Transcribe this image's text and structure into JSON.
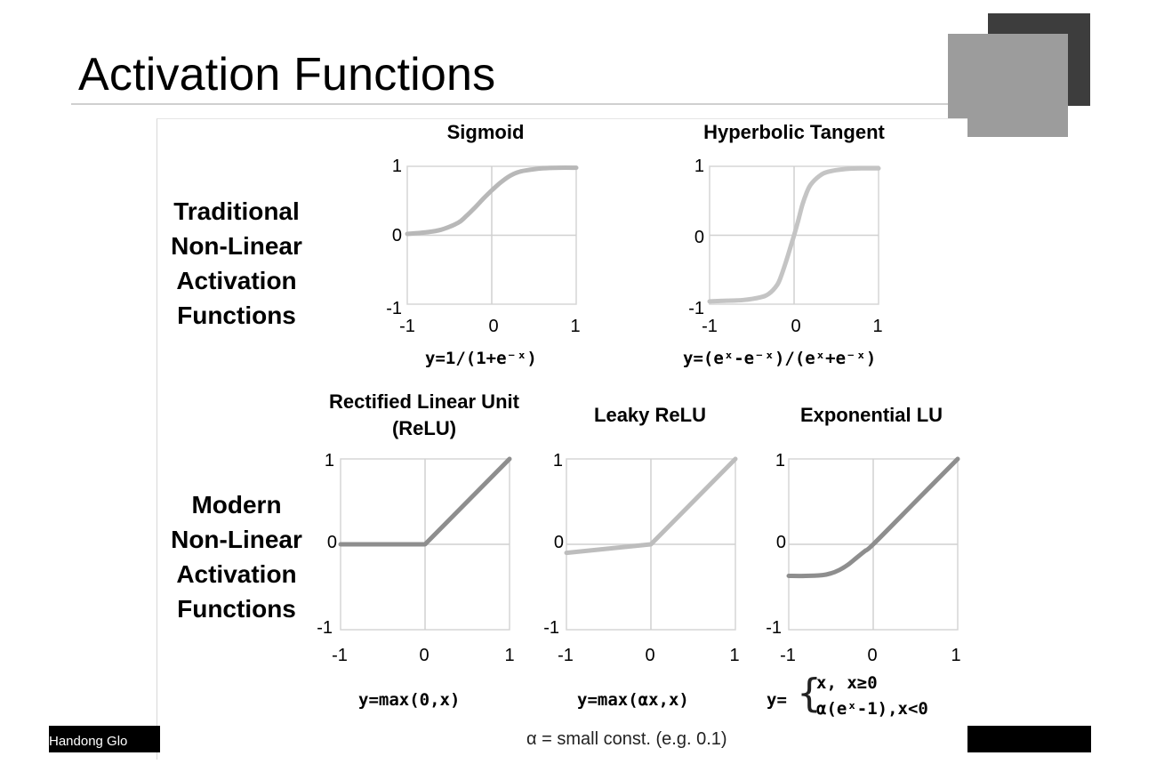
{
  "slide": {
    "title": "Activation Functions",
    "footer_text": "Handong Glo",
    "note": "α = small const. (e.g. 0.1)"
  },
  "row_labels": {
    "traditional": [
      "Traditional",
      "Non-Linear",
      "Activation",
      "Functions"
    ],
    "modern": [
      "Modern",
      "Non-Linear",
      "Activation",
      "Functions"
    ]
  },
  "colors": {
    "sigmoid_curve": "#b8b8b8",
    "tanh_curve": "#c4c4c4",
    "relu_curve": "#8e8e8e",
    "leaky_curve": "#bdbdbd",
    "elu_curve": "#8e8e8e",
    "axis_line": "#d0d0d0",
    "frame": "#d6d6d6"
  },
  "chart_data": [
    {
      "type": "line",
      "title": "Sigmoid",
      "formula": "y=1/(1+e⁻ˣ)",
      "xlim": [
        -1,
        1
      ],
      "ylim": [
        -1,
        1
      ],
      "x_ticks": [
        "-1",
        "0",
        "1"
      ],
      "y_ticks": [
        "1",
        "0",
        "-1"
      ],
      "grid": false,
      "x": [
        -1,
        -0.8,
        -0.6,
        -0.4,
        -0.3,
        -0.2,
        -0.1,
        0,
        0.1,
        0.2,
        0.3,
        0.4,
        0.6,
        0.8,
        1
      ],
      "y": [
        0.02,
        0.04,
        0.08,
        0.18,
        0.28,
        0.4,
        0.53,
        0.65,
        0.76,
        0.85,
        0.91,
        0.94,
        0.97,
        0.98,
        0.98
      ]
    },
    {
      "type": "line",
      "title": "Hyperbolic Tangent",
      "formula": "y=(eˣ-e⁻ˣ)/(eˣ+e⁻ˣ)",
      "xlim": [
        -1,
        1
      ],
      "ylim": [
        -1,
        1
      ],
      "x_ticks": [
        "-1",
        "0",
        "1"
      ],
      "y_ticks": [
        "1",
        "0",
        "-1"
      ],
      "grid": false,
      "x": [
        -1,
        -0.8,
        -0.6,
        -0.4,
        -0.3,
        -0.2,
        -0.15,
        -0.1,
        -0.05,
        0,
        0.05,
        0.1,
        0.15,
        0.2,
        0.3,
        0.4,
        0.6,
        0.8,
        1
      ],
      "y": [
        -0.96,
        -0.95,
        -0.94,
        -0.9,
        -0.85,
        -0.72,
        -0.58,
        -0.4,
        -0.2,
        0,
        0.22,
        0.45,
        0.62,
        0.74,
        0.86,
        0.92,
        0.96,
        0.97,
        0.97
      ]
    },
    {
      "type": "line",
      "title": "Rectified Linear Unit (ReLU)",
      "title_lines": [
        "Rectified Linear Unit",
        "(ReLU)"
      ],
      "formula": "y=max(0,x)",
      "xlim": [
        -1,
        1
      ],
      "ylim": [
        -1,
        1
      ],
      "x_ticks": [
        "-1",
        "0",
        "1"
      ],
      "y_ticks": [
        "1",
        "0",
        "-1"
      ],
      "grid": false,
      "x": [
        -1,
        0,
        1
      ],
      "y": [
        0,
        0,
        1
      ]
    },
    {
      "type": "line",
      "title": "Leaky ReLU",
      "formula": "y=max(αx,x)",
      "xlim": [
        -1,
        1
      ],
      "ylim": [
        -1,
        1
      ],
      "x_ticks": [
        "-1",
        "0",
        "1"
      ],
      "y_ticks": [
        "1",
        "0",
        "-1"
      ],
      "grid": false,
      "x": [
        -1,
        0,
        1
      ],
      "y": [
        -0.1,
        0,
        1
      ]
    },
    {
      "type": "line",
      "title": "Exponential LU",
      "formula_prefix": "y=",
      "formula_lines": [
        "x,          x≥0",
        "α(eˣ-1),x<0"
      ],
      "xlim": [
        -1,
        1
      ],
      "ylim": [
        -1,
        1
      ],
      "x_ticks": [
        "-1",
        "0",
        "1"
      ],
      "y_ticks": [
        "1",
        "0",
        "-1"
      ],
      "grid": false,
      "x": [
        -1,
        -0.8,
        -0.6,
        -0.5,
        -0.4,
        -0.3,
        -0.2,
        -0.1,
        0,
        0.5,
        1
      ],
      "y": [
        -0.37,
        -0.37,
        -0.36,
        -0.34,
        -0.3,
        -0.24,
        -0.16,
        -0.08,
        0,
        0.5,
        1
      ]
    }
  ]
}
